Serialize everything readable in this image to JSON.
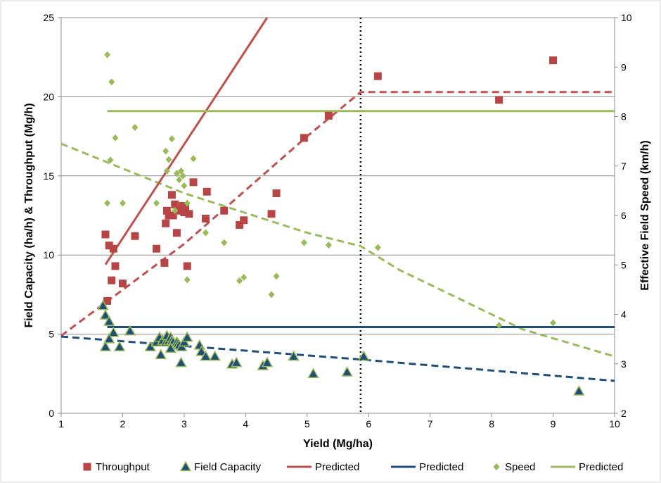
{
  "chart_data": {
    "type": "scatter",
    "xlabel": "Yield (Mg/ha)",
    "ylabel": "Field Capacity (ha/h) & Throughput (Mg/h)",
    "y2label": "Effective Field Speed (km/h)",
    "xlim": [
      1,
      10
    ],
    "ylim": [
      0,
      25
    ],
    "y2lim": [
      2,
      10
    ],
    "xticks": [
      "1",
      "2",
      "3",
      "4",
      "5",
      "6",
      "7",
      "8",
      "9",
      "10"
    ],
    "yticks": [
      "0",
      "5",
      "10",
      "15",
      "20",
      "25"
    ],
    "y2ticks": [
      "2",
      "3",
      "4",
      "5",
      "6",
      "7",
      "8",
      "9",
      "10"
    ],
    "grid": "horizontal",
    "legend_position": "bottom",
    "vertical_marker_x": 5.87,
    "series": [
      {
        "name": "Throughput",
        "kind": "points",
        "marker": "square",
        "color": "#b84545",
        "axis": "left",
        "points": [
          [
            1.72,
            11.3
          ],
          [
            1.78,
            10.6
          ],
          [
            1.75,
            7.1
          ],
          [
            1.82,
            8.4
          ],
          [
            1.85,
            10.4
          ],
          [
            1.88,
            9.3
          ],
          [
            2.0,
            8.2
          ],
          [
            2.2,
            11.2
          ],
          [
            2.55,
            10.4
          ],
          [
            2.68,
            9.5
          ],
          [
            2.7,
            12.0
          ],
          [
            2.72,
            12.8
          ],
          [
            2.75,
            12.5
          ],
          [
            2.8,
            13.8
          ],
          [
            2.82,
            12.5
          ],
          [
            2.85,
            13.2
          ],
          [
            2.88,
            11.4
          ],
          [
            2.92,
            12.9
          ],
          [
            2.95,
            12.8
          ],
          [
            2.98,
            13.1
          ],
          [
            3.0,
            12.7
          ],
          [
            3.02,
            13.0
          ],
          [
            3.05,
            9.3
          ],
          [
            3.08,
            12.6
          ],
          [
            3.15,
            14.6
          ],
          [
            3.35,
            12.3
          ],
          [
            3.37,
            14.0
          ],
          [
            3.65,
            12.8
          ],
          [
            3.9,
            11.9
          ],
          [
            3.97,
            12.2
          ],
          [
            4.42,
            12.6
          ],
          [
            4.5,
            13.9
          ],
          [
            4.95,
            17.4
          ],
          [
            5.35,
            18.8
          ],
          [
            6.15,
            21.3
          ],
          [
            8.12,
            19.8
          ],
          [
            9.0,
            22.3
          ]
        ]
      },
      {
        "name": "Field Capacity",
        "kind": "points",
        "marker": "triangle",
        "color": "#1f4e79",
        "stroke": "#9bbb59",
        "axis": "left",
        "points": [
          [
            1.68,
            6.8
          ],
          [
            1.72,
            6.2
          ],
          [
            1.78,
            5.8
          ],
          [
            1.85,
            5.1
          ],
          [
            1.78,
            4.7
          ],
          [
            1.72,
            4.2
          ],
          [
            1.95,
            4.2
          ],
          [
            2.12,
            5.2
          ],
          [
            2.45,
            4.2
          ],
          [
            2.55,
            4.5
          ],
          [
            2.6,
            4.8
          ],
          [
            2.62,
            3.7
          ],
          [
            2.65,
            4.6
          ],
          [
            2.7,
            4.5
          ],
          [
            2.72,
            4.9
          ],
          [
            2.75,
            4.6
          ],
          [
            2.78,
            4.8
          ],
          [
            2.8,
            4.6
          ],
          [
            2.82,
            4.5
          ],
          [
            2.88,
            4.5
          ],
          [
            2.9,
            4.4
          ],
          [
            2.92,
            4.3
          ],
          [
            2.96,
            4.2
          ],
          [
            3.0,
            4.5
          ],
          [
            3.05,
            4.8
          ],
          [
            2.78,
            4.1
          ],
          [
            2.95,
            3.2
          ],
          [
            3.25,
            4.3
          ],
          [
            3.28,
            3.9
          ],
          [
            3.35,
            3.6
          ],
          [
            3.5,
            3.6
          ],
          [
            3.78,
            3.1
          ],
          [
            3.85,
            3.2
          ],
          [
            4.28,
            3.0
          ],
          [
            4.35,
            3.2
          ],
          [
            4.78,
            3.6
          ],
          [
            5.1,
            2.5
          ],
          [
            5.65,
            2.6
          ],
          [
            5.92,
            3.6
          ],
          [
            9.42,
            1.4
          ]
        ]
      },
      {
        "name": "Speed",
        "kind": "points",
        "marker": "diamond",
        "color": "#9bbb59",
        "axis": "right",
        "points": [
          [
            1.75,
            9.25
          ],
          [
            1.8,
            7.12
          ],
          [
            1.82,
            8.7
          ],
          [
            1.88,
            7.57
          ],
          [
            1.75,
            6.25
          ],
          [
            2.0,
            6.25
          ],
          [
            2.2,
            7.78
          ],
          [
            2.55,
            6.25
          ],
          [
            2.7,
            7.3
          ],
          [
            2.72,
            6.9
          ],
          [
            2.75,
            7.13
          ],
          [
            2.8,
            7.55
          ],
          [
            2.85,
            6.1
          ],
          [
            2.88,
            6.85
          ],
          [
            2.92,
            6.72
          ],
          [
            2.95,
            6.9
          ],
          [
            2.98,
            6.8
          ],
          [
            3.0,
            6.6
          ],
          [
            3.05,
            6.25
          ],
          [
            3.05,
            4.7
          ],
          [
            3.15,
            7.15
          ],
          [
            3.35,
            5.65
          ],
          [
            3.65,
            5.45
          ],
          [
            3.9,
            4.68
          ],
          [
            3.97,
            4.75
          ],
          [
            4.42,
            4.4
          ],
          [
            4.5,
            4.77
          ],
          [
            4.95,
            5.45
          ],
          [
            5.35,
            5.4
          ],
          [
            6.15,
            5.35
          ],
          [
            8.12,
            3.78
          ],
          [
            9.0,
            3.83
          ]
        ]
      }
    ],
    "lines": [
      {
        "name": "Predicted",
        "style": "solid",
        "color": "#c0504d",
        "axis": "left",
        "points": [
          [
            1.72,
            9.4
          ],
          [
            4.35,
            25.0
          ]
        ]
      },
      {
        "name": "Predicted",
        "style": "solid",
        "color": "#1f4e79",
        "axis": "left",
        "points": [
          [
            1.75,
            5.45
          ],
          [
            10.0,
            5.45
          ]
        ]
      },
      {
        "name": "Predicted",
        "style": "solid",
        "color": "#9bbb59",
        "axis": "right",
        "points": [
          [
            1.75,
            8.11
          ],
          [
            10.0,
            8.11
          ]
        ]
      }
    ],
    "dashed_lines": [
      {
        "color": "#c0504d",
        "axis": "left",
        "points": [
          [
            1.0,
            4.9
          ],
          [
            3.0,
            10.7
          ],
          [
            5.0,
            17.5
          ],
          [
            5.87,
            20.3
          ],
          [
            10.0,
            20.3
          ]
        ]
      },
      {
        "color": "#1f4e79",
        "axis": "left",
        "points": [
          [
            1.0,
            4.85
          ],
          [
            5.87,
            3.4
          ],
          [
            10.0,
            2.05
          ]
        ]
      },
      {
        "color": "#9bbb59",
        "axis": "right",
        "points": [
          [
            1.0,
            7.45
          ],
          [
            2.0,
            6.95
          ],
          [
            3.0,
            6.45
          ],
          [
            4.0,
            6.05
          ],
          [
            5.0,
            5.65
          ],
          [
            5.87,
            5.38
          ],
          [
            6.5,
            4.9
          ],
          [
            7.5,
            4.3
          ],
          [
            8.5,
            3.7
          ],
          [
            10.0,
            3.15
          ]
        ]
      }
    ],
    "legend": [
      {
        "label": "Throughput",
        "symbol": "square",
        "color": "#b84545"
      },
      {
        "label": "Field Capacity",
        "symbol": "triangle",
        "color": "#1f4e79",
        "stroke": "#9bbb59"
      },
      {
        "label": "Predicted",
        "symbol": "line",
        "color": "#c0504d"
      },
      {
        "label": "Predicted",
        "symbol": "line",
        "color": "#1f4e79"
      },
      {
        "label": "Speed",
        "symbol": "diamond",
        "color": "#9bbb59"
      },
      {
        "label": "Predicted",
        "symbol": "line",
        "color": "#9bbb59"
      }
    ]
  }
}
